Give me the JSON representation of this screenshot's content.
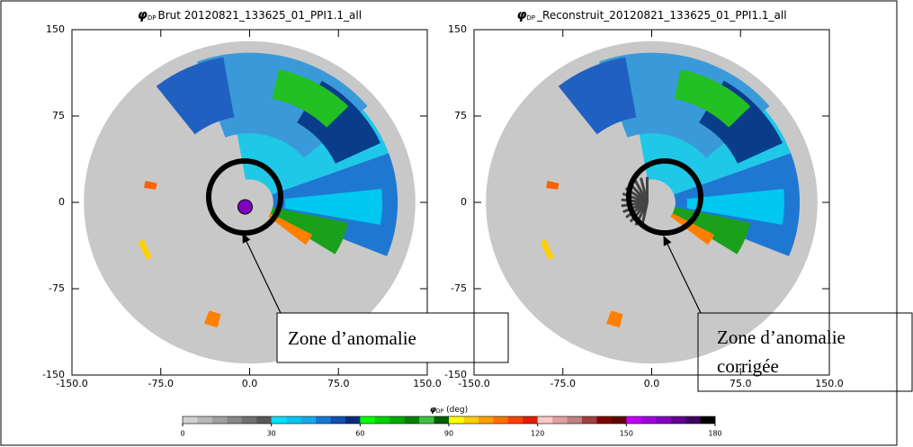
{
  "chart_data": [
    {
      "type": "radar-ppi",
      "title_symbol": "φ",
      "title_subscript": "DP",
      "title": "Brut 20120821_133625_01_PPI1.1_all",
      "xlim": [
        -150,
        150
      ],
      "ylim": [
        -150,
        150
      ],
      "xticks": [
        {
          "value": -150,
          "label": "-150.0"
        },
        {
          "value": -75,
          "label": "-75.0"
        },
        {
          "value": 0,
          "label": "0.0"
        },
        {
          "value": 75,
          "label": "75.0"
        },
        {
          "value": 150,
          "label": "150.0"
        }
      ],
      "yticks": [
        150,
        75,
        0,
        -75,
        -150
      ],
      "annotations": [
        "Zone d’anomalie"
      ]
    },
    {
      "type": "radar-ppi",
      "title_symbol": "φ",
      "title_subscript": "DP",
      "title": "_Reconstruit_20120821_133625_01_PPI1.1_all",
      "xlim": [
        -150,
        150
      ],
      "ylim": [
        -150,
        150
      ],
      "xticks": [
        {
          "value": -150,
          "label": "-150.0"
        },
        {
          "value": -75,
          "label": "-75.0"
        },
        {
          "value": 0,
          "label": "0.0"
        },
        {
          "value": 75,
          "label": "75.0"
        },
        {
          "value": 150,
          "label": "150.0"
        }
      ],
      "yticks": [
        150,
        75,
        0,
        -75,
        -150
      ],
      "annotations": [
        "Zone d’anomalie",
        "corrigée"
      ]
    }
  ],
  "colorbar": {
    "label_symbol": "φ",
    "label_subscript": "DP",
    "label": "(deg)",
    "lim": [
      0,
      180
    ],
    "ticks": [
      0,
      30,
      60,
      90,
      120,
      150,
      180
    ],
    "colors": [
      "#d0d0d0",
      "#b8b8b8",
      "#a0a0a0",
      "#888888",
      "#707070",
      "#585858",
      "#00e0ff",
      "#00c8f0",
      "#18a8e8",
      "#1878d0",
      "#1050b0",
      "#0a2c80",
      "#00ff00",
      "#00d000",
      "#00a800",
      "#008000",
      "#40c040",
      "#006000",
      "#ffff00",
      "#ffd000",
      "#ffa000",
      "#ff7000",
      "#ff4000",
      "#e02000",
      "#ffc8c8",
      "#e0a0a0",
      "#c08080",
      "#a04040",
      "#800000",
      "#600000",
      "#c000ff",
      "#a000e0",
      "#8000c0",
      "#600090",
      "#400060",
      "#000000"
    ]
  }
}
